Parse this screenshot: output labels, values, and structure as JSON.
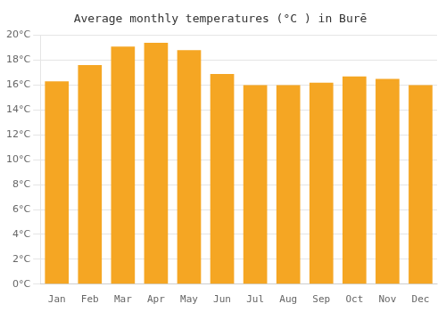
{
  "chart_data": {
    "type": "bar",
    "title": "Average monthly temperatures (°C ) in Burē",
    "categories": [
      "Jan",
      "Feb",
      "Mar",
      "Apr",
      "May",
      "Jun",
      "Jul",
      "Aug",
      "Sep",
      "Oct",
      "Nov",
      "Dec"
    ],
    "values": [
      16.3,
      17.6,
      19.1,
      19.4,
      18.8,
      16.9,
      16.0,
      16.0,
      16.2,
      16.7,
      16.5,
      16.0
    ],
    "color": "#F5A623",
    "ylim": [
      0,
      20
    ],
    "yticks": [
      {
        "value": 0,
        "label": "0°C"
      },
      {
        "value": 2,
        "label": "2°C"
      },
      {
        "value": 4,
        "label": "4°C"
      },
      {
        "value": 6,
        "label": "6°C"
      },
      {
        "value": 8,
        "label": "8°C"
      },
      {
        "value": 10,
        "label": "10°C"
      },
      {
        "value": 12,
        "label": "12°C"
      },
      {
        "value": 14,
        "label": "14°C"
      },
      {
        "value": 16,
        "label": "16°C"
      },
      {
        "value": 18,
        "label": "18°C"
      },
      {
        "value": 20,
        "label": "20°C"
      }
    ],
    "grid": true
  }
}
